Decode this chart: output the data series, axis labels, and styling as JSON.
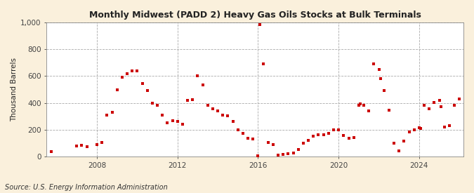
{
  "title": "Monthly Midwest (PADD 2) Heavy Gas Oils Stocks at Bulk Terminals",
  "ylabel": "Thousand Barrels",
  "source": "Source: U.S. Energy Information Administration",
  "background_color": "#FAF0DC",
  "plot_bg_color": "#FFFFFF",
  "marker_color": "#CC0000",
  "marker_size": 3.5,
  "ylim": [
    0,
    1000
  ],
  "yticks": [
    0,
    200,
    400,
    600,
    800,
    1000
  ],
  "ytick_labels": [
    "0",
    "200",
    "400",
    "600",
    "800",
    "1,000"
  ],
  "xlim_start": 2005.5,
  "xlim_end": 2026.2,
  "xticks": [
    2008,
    2012,
    2016,
    2020,
    2024
  ],
  "data": [
    [
      2005.75,
      35
    ],
    [
      2007.0,
      80
    ],
    [
      2007.25,
      85
    ],
    [
      2007.5,
      75
    ],
    [
      2008.0,
      90
    ],
    [
      2008.25,
      105
    ],
    [
      2008.5,
      310
    ],
    [
      2008.75,
      330
    ],
    [
      2009.0,
      500
    ],
    [
      2009.25,
      590
    ],
    [
      2009.5,
      620
    ],
    [
      2009.75,
      640
    ],
    [
      2010.0,
      640
    ],
    [
      2010.25,
      545
    ],
    [
      2010.5,
      490
    ],
    [
      2010.75,
      400
    ],
    [
      2011.0,
      385
    ],
    [
      2011.25,
      310
    ],
    [
      2011.5,
      250
    ],
    [
      2011.75,
      265
    ],
    [
      2012.0,
      260
    ],
    [
      2012.25,
      240
    ],
    [
      2012.5,
      420
    ],
    [
      2012.75,
      425
    ],
    [
      2013.0,
      600
    ],
    [
      2013.25,
      535
    ],
    [
      2013.5,
      380
    ],
    [
      2013.75,
      355
    ],
    [
      2014.0,
      340
    ],
    [
      2014.25,
      310
    ],
    [
      2014.5,
      305
    ],
    [
      2014.75,
      260
    ],
    [
      2015.0,
      200
    ],
    [
      2015.25,
      175
    ],
    [
      2015.5,
      135
    ],
    [
      2015.75,
      130
    ],
    [
      2016.0,
      5
    ],
    [
      2016.08,
      985
    ],
    [
      2016.25,
      690
    ],
    [
      2016.5,
      105
    ],
    [
      2016.75,
      90
    ],
    [
      2017.0,
      10
    ],
    [
      2017.25,
      18
    ],
    [
      2017.5,
      20
    ],
    [
      2017.75,
      25
    ],
    [
      2018.0,
      55
    ],
    [
      2018.25,
      100
    ],
    [
      2018.5,
      120
    ],
    [
      2018.75,
      150
    ],
    [
      2019.0,
      165
    ],
    [
      2019.25,
      165
    ],
    [
      2019.5,
      175
    ],
    [
      2019.75,
      200
    ],
    [
      2020.0,
      200
    ],
    [
      2020.25,
      155
    ],
    [
      2020.5,
      135
    ],
    [
      2020.75,
      140
    ],
    [
      2021.0,
      380
    ],
    [
      2021.08,
      395
    ],
    [
      2021.25,
      380
    ],
    [
      2021.5,
      340
    ],
    [
      2021.75,
      690
    ],
    [
      2022.0,
      650
    ],
    [
      2022.08,
      580
    ],
    [
      2022.25,
      490
    ],
    [
      2022.5,
      345
    ],
    [
      2022.75,
      100
    ],
    [
      2023.0,
      40
    ],
    [
      2023.25,
      115
    ],
    [
      2023.5,
      185
    ],
    [
      2023.75,
      200
    ],
    [
      2024.0,
      215
    ],
    [
      2024.08,
      210
    ],
    [
      2024.25,
      380
    ],
    [
      2024.5,
      355
    ],
    [
      2024.75,
      405
    ],
    [
      2025.0,
      420
    ],
    [
      2025.08,
      370
    ],
    [
      2025.25,
      220
    ],
    [
      2025.5,
      230
    ],
    [
      2025.75,
      380
    ],
    [
      2026.0,
      430
    ]
  ]
}
